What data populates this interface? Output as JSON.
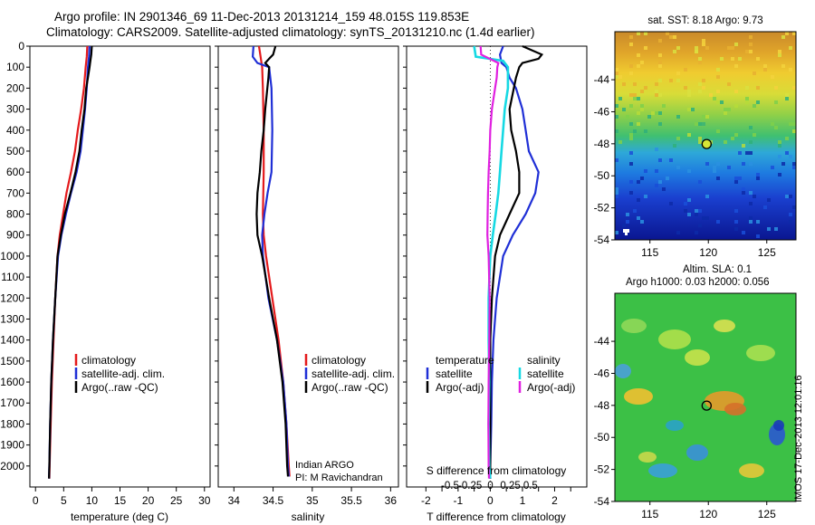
{
  "header": {
    "line1": "Argo profile: IN 2901346_69 11-Dec-2013 20131214_159 48.015S 119.853E",
    "line2": "Climatology: CARS2009. Satellite-adjusted climatology: synTS_20131210.nc (1.4d earlier)"
  },
  "colors": {
    "climatology": "#e41a1c",
    "satellite": "#1f2fd6",
    "argo": "#000000",
    "satellite_diff_salinity": "#16d9e3",
    "argo_diff_salinity": "#e020e0"
  },
  "chart_data": [
    {
      "type": "line",
      "id": "temperature",
      "xlabel": "temperature (deg C)",
      "xlim": [
        -1,
        31
      ],
      "ylim": [
        2100,
        0
      ],
      "xticks": [
        0,
        5,
        10,
        15,
        20,
        25,
        30
      ],
      "yticks": [
        0,
        100,
        200,
        300,
        400,
        500,
        600,
        700,
        800,
        900,
        1000,
        1100,
        1200,
        1300,
        1400,
        1500,
        1600,
        1700,
        1800,
        1900,
        2000
      ],
      "legend": [
        "climatology",
        "satellite-adj. clim.",
        "Argo(..raw -QC)"
      ],
      "series": [
        {
          "name": "climatology",
          "color_key": "climatology",
          "points": [
            [
              9.2,
              0
            ],
            [
              9.1,
              50
            ],
            [
              8.9,
              100
            ],
            [
              8.6,
              200
            ],
            [
              8.1,
              300
            ],
            [
              7.5,
              400
            ],
            [
              7.0,
              500
            ],
            [
              6.3,
              600
            ],
            [
              5.5,
              700
            ],
            [
              4.9,
              800
            ],
            [
              4.3,
              900
            ],
            [
              3.9,
              1000
            ],
            [
              3.5,
              1200
            ],
            [
              3.2,
              1400
            ],
            [
              2.9,
              1600
            ],
            [
              2.7,
              1800
            ],
            [
              2.5,
              2000
            ],
            [
              2.45,
              2060
            ]
          ]
        },
        {
          "name": "satellite-adj. clim.",
          "color_key": "satellite",
          "points": [
            [
              9.6,
              0
            ],
            [
              9.5,
              50
            ],
            [
              9.3,
              100
            ],
            [
              9.1,
              200
            ],
            [
              8.8,
              300
            ],
            [
              8.4,
              400
            ],
            [
              8.0,
              500
            ],
            [
              7.3,
              600
            ],
            [
              6.3,
              700
            ],
            [
              5.4,
              800
            ],
            [
              4.6,
              900
            ],
            [
              4.0,
              1000
            ],
            [
              3.5,
              1200
            ],
            [
              3.1,
              1400
            ],
            [
              2.8,
              1600
            ],
            [
              2.6,
              1800
            ],
            [
              2.45,
              2000
            ],
            [
              2.4,
              2060
            ]
          ]
        },
        {
          "name": "Argo(..raw -QC)",
          "color_key": "argo",
          "points": [
            [
              10.0,
              0
            ],
            [
              9.9,
              40
            ],
            [
              9.7,
              80
            ],
            [
              9.6,
              100
            ],
            [
              9.3,
              150
            ],
            [
              9.0,
              200
            ],
            [
              8.7,
              300
            ],
            [
              8.2,
              400
            ],
            [
              7.8,
              500
            ],
            [
              7.1,
              600
            ],
            [
              6.2,
              700
            ],
            [
              5.2,
              800
            ],
            [
              4.5,
              900
            ],
            [
              3.9,
              1000
            ],
            [
              3.5,
              1200
            ],
            [
              3.1,
              1400
            ],
            [
              2.8,
              1600
            ],
            [
              2.6,
              1800
            ],
            [
              2.45,
              2000
            ],
            [
              2.4,
              2060
            ]
          ]
        }
      ]
    },
    {
      "type": "line",
      "id": "salinity",
      "xlabel": "salinity",
      "xlim": [
        33.8,
        36.1
      ],
      "ylim": [
        2100,
        0
      ],
      "xticks": [
        34,
        34.5,
        35,
        35.5,
        36
      ],
      "legend": [
        "climatology",
        "satellite-adj. clim.",
        "Argo(..raw -QC)"
      ],
      "annotation": [
        "Indian ARGO",
        "PI: M Ravichandran"
      ],
      "series": [
        {
          "name": "climatology",
          "color_key": "climatology",
          "points": [
            [
              34.32,
              0
            ],
            [
              34.36,
              100
            ],
            [
              34.37,
              200
            ],
            [
              34.38,
              400
            ],
            [
              34.38,
              600
            ],
            [
              34.37,
              800
            ],
            [
              34.38,
              900
            ],
            [
              34.41,
              1000
            ],
            [
              34.49,
              1200
            ],
            [
              34.57,
              1400
            ],
            [
              34.63,
              1600
            ],
            [
              34.67,
              1800
            ],
            [
              34.7,
              2000
            ],
            [
              34.71,
              2050
            ]
          ]
        },
        {
          "name": "satellite-adj. clim.",
          "color_key": "satellite",
          "points": [
            [
              34.25,
              0
            ],
            [
              34.24,
              50
            ],
            [
              34.3,
              80
            ],
            [
              34.45,
              100
            ],
            [
              34.48,
              200
            ],
            [
              34.49,
              400
            ],
            [
              34.48,
              600
            ],
            [
              34.43,
              700
            ],
            [
              34.39,
              800
            ],
            [
              34.36,
              900
            ],
            [
              34.37,
              1000
            ],
            [
              34.44,
              1200
            ],
            [
              34.55,
              1400
            ],
            [
              34.63,
              1600
            ],
            [
              34.67,
              1800
            ],
            [
              34.69,
              2000
            ],
            [
              34.7,
              2050
            ]
          ]
        },
        {
          "name": "Argo(..raw -QC)",
          "color_key": "argo",
          "points": [
            [
              34.53,
              0
            ],
            [
              34.5,
              40
            ],
            [
              34.45,
              60
            ],
            [
              34.4,
              80
            ],
            [
              34.45,
              100
            ],
            [
              34.44,
              150
            ],
            [
              34.4,
              300
            ],
            [
              34.38,
              400
            ],
            [
              34.35,
              500
            ],
            [
              34.33,
              600
            ],
            [
              34.3,
              700
            ],
            [
              34.29,
              800
            ],
            [
              34.3,
              900
            ],
            [
              34.36,
              1000
            ],
            [
              34.45,
              1200
            ],
            [
              34.55,
              1400
            ],
            [
              34.62,
              1600
            ],
            [
              34.66,
              1800
            ],
            [
              34.68,
              2000
            ],
            [
              34.69,
              2050
            ]
          ]
        }
      ]
    },
    {
      "type": "line",
      "id": "differences",
      "xlabel": "T difference from climatology",
      "xlabel_top": "S difference from climatology",
      "xlim": [
        -2.6,
        3.0
      ],
      "ylim": [
        2100,
        0
      ],
      "xticks": [
        -2,
        -1.5,
        -1,
        -0.5,
        0,
        0.5,
        1,
        1.5,
        2,
        2.5
      ],
      "xticklabels": [
        "-2",
        "",
        "-1",
        "",
        "0",
        "",
        "1",
        "",
        "2",
        ""
      ],
      "sticks": [
        -0.5,
        -0.25,
        0,
        0.25,
        0.5
      ],
      "sticklabels": [
        "-0.5",
        "-0.25",
        "0",
        "0.25",
        "0.5"
      ],
      "legend": {
        "temperature_title": "temperature",
        "salinity_title": "salinity",
        "temperature": [
          "satellite",
          "Argo(-adj)"
        ],
        "salinity": [
          "satellite",
          "Argo(-adj)"
        ]
      },
      "series": [
        {
          "name": "temperature satellite",
          "color_key": "satellite",
          "points": [
            [
              0.4,
              0
            ],
            [
              0.3,
              40
            ],
            [
              0.35,
              80
            ],
            [
              0.5,
              100
            ],
            [
              0.6,
              150
            ],
            [
              0.8,
              200
            ],
            [
              1.0,
              300
            ],
            [
              1.1,
              400
            ],
            [
              1.2,
              500
            ],
            [
              1.5,
              600
            ],
            [
              1.4,
              700
            ],
            [
              1.1,
              800
            ],
            [
              0.7,
              900
            ],
            [
              0.4,
              1000
            ],
            [
              0.2,
              1200
            ],
            [
              0.1,
              1400
            ],
            [
              0.05,
              1600
            ],
            [
              0.03,
              1800
            ],
            [
              0.0,
              2000
            ],
            [
              0.0,
              2060
            ]
          ]
        },
        {
          "name": "temperature Argo(-adj)",
          "color_key": "argo",
          "points": [
            [
              1.0,
              0
            ],
            [
              1.6,
              40
            ],
            [
              1.5,
              60
            ],
            [
              1.0,
              80
            ],
            [
              0.9,
              100
            ],
            [
              0.8,
              150
            ],
            [
              0.6,
              300
            ],
            [
              0.65,
              400
            ],
            [
              0.8,
              500
            ],
            [
              0.9,
              600
            ],
            [
              0.9,
              700
            ],
            [
              0.6,
              800
            ],
            [
              0.3,
              900
            ],
            [
              0.15,
              1000
            ],
            [
              0.05,
              1200
            ],
            [
              0.0,
              1400
            ],
            [
              0.0,
              1600
            ],
            [
              0.0,
              1800
            ],
            [
              0.0,
              2000
            ],
            [
              0.0,
              2060
            ]
          ]
        },
        {
          "name": "salinity satellite",
          "color_key": "satellite_diff_salinity",
          "points": [
            [
              -0.5,
              0
            ],
            [
              -0.45,
              50
            ],
            [
              0.4,
              70
            ],
            [
              0.55,
              100
            ],
            [
              0.55,
              200
            ],
            [
              0.45,
              300
            ],
            [
              0.4,
              400
            ],
            [
              0.35,
              500
            ],
            [
              0.3,
              600
            ],
            [
              0.25,
              700
            ],
            [
              0.17,
              800
            ],
            [
              0.08,
              900
            ],
            [
              0.0,
              1000
            ],
            [
              -0.05,
              1200
            ],
            [
              -0.05,
              1400
            ],
            [
              -0.03,
              1600
            ],
            [
              -0.05,
              1800
            ],
            [
              -0.03,
              2000
            ],
            [
              0.0,
              2060
            ]
          ]
        },
        {
          "name": "salinity Argo(-adj)",
          "color_key": "argo_diff_salinity",
          "points": [
            [
              -0.3,
              0
            ],
            [
              -0.28,
              40
            ],
            [
              0.25,
              80
            ],
            [
              0.22,
              100
            ],
            [
              0.2,
              150
            ],
            [
              0.15,
              200
            ],
            [
              0.05,
              300
            ],
            [
              0.0,
              400
            ],
            [
              -0.02,
              500
            ],
            [
              -0.05,
              600
            ],
            [
              -0.07,
              700
            ],
            [
              -0.08,
              800
            ],
            [
              -0.09,
              900
            ],
            [
              -0.05,
              1000
            ],
            [
              -0.02,
              1200
            ],
            [
              -0.03,
              1400
            ],
            [
              -0.05,
              1600
            ],
            [
              -0.06,
              1800
            ],
            [
              -0.05,
              2000
            ],
            [
              -0.04,
              2060
            ]
          ]
        }
      ]
    },
    {
      "type": "heatmap",
      "id": "sst_map",
      "title": "sat. SST: 8.18 Argo: 9.73",
      "xlim": [
        112,
        127.5
      ],
      "ylim": [
        -54,
        -41
      ],
      "xticks": [
        115,
        120,
        125
      ],
      "yticks": [
        -44,
        -46,
        -48,
        -50,
        -52,
        -54
      ],
      "argo_position": [
        119.853,
        -48.015
      ]
    },
    {
      "type": "heatmap",
      "id": "sla_map",
      "title": [
        "Altim. SLA: 0.1",
        "Argo h1000: 0.03 h2000: 0.056"
      ],
      "xlim": [
        112,
        127.5
      ],
      "ylim": [
        -54,
        -41
      ],
      "xticks": [
        115,
        120,
        125
      ],
      "yticks": [
        -44,
        -46,
        -48,
        -50,
        -52,
        -54
      ],
      "argo_position": [
        119.853,
        -48.015
      ]
    }
  ],
  "stamp": "IMOS 17-Dec-2013 12:01:16"
}
